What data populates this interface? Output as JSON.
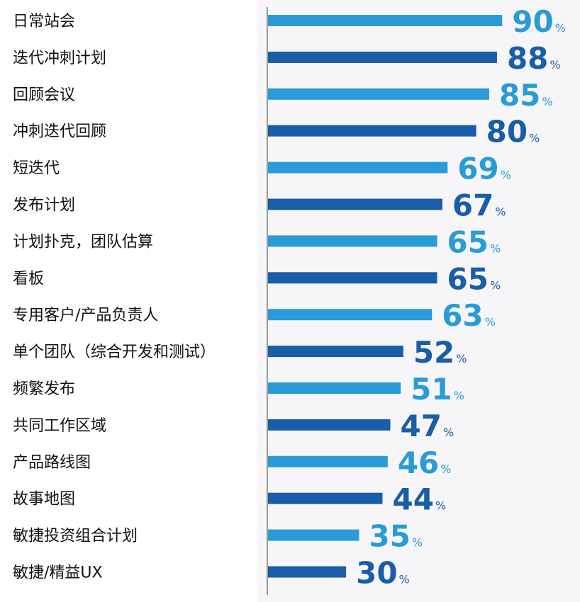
{
  "chart_data": {
    "type": "bar",
    "orientation": "horizontal",
    "categories": [
      "日常站会",
      "迭代冲刺计划",
      "回顾会议",
      "冲刺迭代回顾",
      "短迭代",
      "发布计划",
      "计划扑克，团队估算",
      "看板",
      "专用客户/产品负责人",
      "单个团队（综合开发和测试）",
      "频繁发布",
      "共同工作区域",
      "产品路线图",
      "故事地图",
      "敏捷投资组合计划",
      "敏捷/精益UX"
    ],
    "values": [
      90,
      88,
      85,
      80,
      69,
      67,
      65,
      65,
      63,
      52,
      51,
      47,
      46,
      44,
      35,
      30
    ],
    "value_suffix": "%",
    "xlim": [
      0,
      100
    ],
    "grid": false,
    "legend": "none",
    "colors": {
      "light": "#2a9bd8",
      "dark": "#1a5da8",
      "axis": "#9a9a9a",
      "label": "#111111",
      "panel": "#f6f6f8"
    }
  }
}
